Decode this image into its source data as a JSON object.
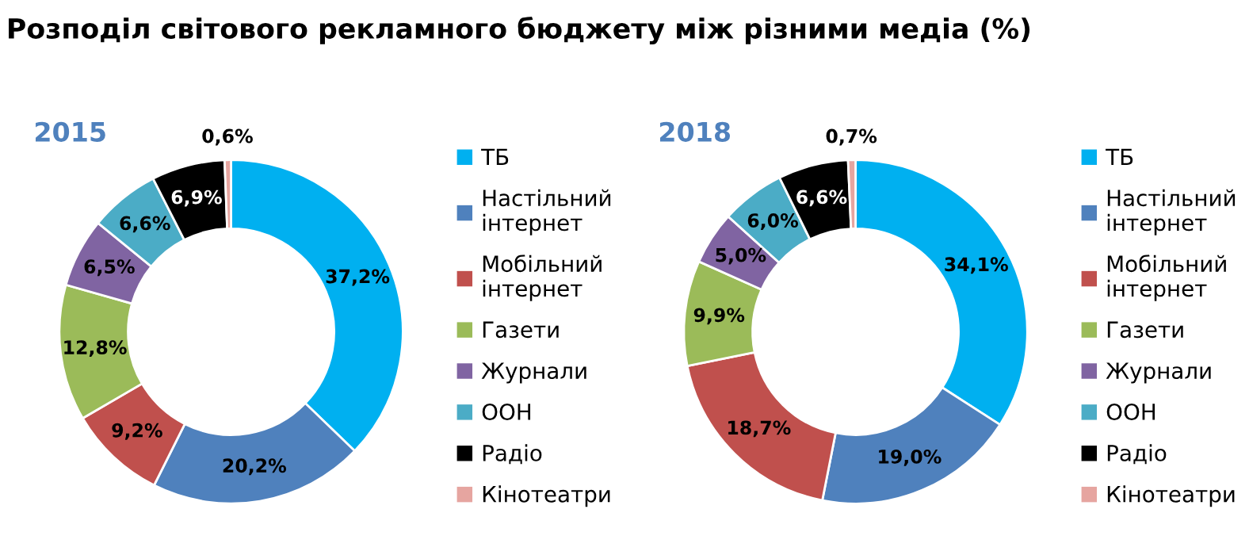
{
  "chart_data": [
    {
      "type": "donut",
      "title": "Розподіл світового рекламного бюджету між різними медіа (%)",
      "subtitle": "2015",
      "categories": [
        "ТБ",
        "Настільний\nінтернет",
        "Мобільний\nінтернет",
        "Газети",
        "Журнали",
        "ООН",
        "Радіо",
        "Кінотеатри"
      ],
      "values": [
        37.2,
        20.2,
        9.2,
        12.8,
        6.5,
        6.6,
        6.9,
        0.6
      ],
      "value_labels": [
        "37,2%",
        "20,2%",
        "9,2%",
        "12,8%",
        "6,5%",
        "6,6%",
        "6,9%",
        "0,6%"
      ],
      "colors": [
        "#00b0f0",
        "#4f81bd",
        "#c0504d",
        "#9bbb59",
        "#8064a2",
        "#4bacc6",
        "#000000",
        "#e6a5a0"
      ],
      "legend": "right"
    },
    {
      "type": "donut",
      "subtitle": "2018",
      "categories": [
        "ТБ",
        "Настільний\nінтернет",
        "Мобільний\nінтернет",
        "Газети",
        "Журнали",
        "ООН",
        "Радіо",
        "Кінотеатри"
      ],
      "values": [
        34.1,
        19.0,
        18.7,
        9.9,
        5.0,
        6.0,
        6.6,
        0.7
      ],
      "value_labels": [
        "34,1%",
        "19,0%",
        "18,7%",
        "9,9%",
        "5,0%",
        "6,0%",
        "6,6%",
        "0,7%"
      ],
      "colors": [
        "#00b0f0",
        "#4f81bd",
        "#c0504d",
        "#9bbb59",
        "#8064a2",
        "#4bacc6",
        "#000000",
        "#e6a5a0"
      ],
      "legend": "right"
    }
  ]
}
